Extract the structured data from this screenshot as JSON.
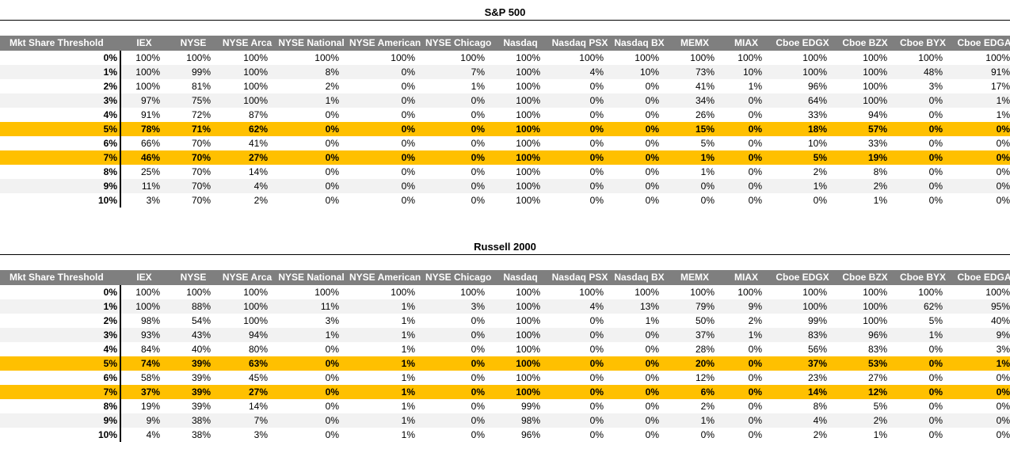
{
  "columns": [
    "Mkt Share Threshold",
    "IEX",
    "NYSE",
    "NYSE Arca",
    "NYSE National",
    "NYSE American",
    "NYSE Chicago",
    "Nasdaq",
    "Nasdaq PSX",
    "Nasdaq BX",
    "MEMX",
    "MIAX",
    "Cboe EDGX",
    "Cboe BZX",
    "Cboe BYX",
    "Cboe EDGA"
  ],
  "highlight_color": "#ffc000",
  "header_color": "#7f7f7f",
  "sections": [
    {
      "title": "S&P 500",
      "rows": [
        {
          "threshold": "0%",
          "values": [
            "100%",
            "100%",
            "100%",
            "100%",
            "100%",
            "100%",
            "100%",
            "100%",
            "100%",
            "100%",
            "100%",
            "100%",
            "100%",
            "100%",
            "100%"
          ]
        },
        {
          "threshold": "1%",
          "values": [
            "100%",
            "99%",
            "100%",
            "8%",
            "0%",
            "7%",
            "100%",
            "4%",
            "10%",
            "73%",
            "10%",
            "100%",
            "100%",
            "48%",
            "91%"
          ]
        },
        {
          "threshold": "2%",
          "values": [
            "100%",
            "81%",
            "100%",
            "2%",
            "0%",
            "1%",
            "100%",
            "0%",
            "0%",
            "41%",
            "1%",
            "96%",
            "100%",
            "3%",
            "17%"
          ]
        },
        {
          "threshold": "3%",
          "values": [
            "97%",
            "75%",
            "100%",
            "1%",
            "0%",
            "0%",
            "100%",
            "0%",
            "0%",
            "34%",
            "0%",
            "64%",
            "100%",
            "0%",
            "1%"
          ]
        },
        {
          "threshold": "4%",
          "values": [
            "91%",
            "72%",
            "87%",
            "0%",
            "0%",
            "0%",
            "100%",
            "0%",
            "0%",
            "26%",
            "0%",
            "33%",
            "94%",
            "0%",
            "1%"
          ]
        },
        {
          "threshold": "5%",
          "values": [
            "78%",
            "71%",
            "62%",
            "0%",
            "0%",
            "0%",
            "100%",
            "0%",
            "0%",
            "15%",
            "0%",
            "18%",
            "57%",
            "0%",
            "0%"
          ]
        },
        {
          "threshold": "6%",
          "values": [
            "66%",
            "70%",
            "41%",
            "0%",
            "0%",
            "0%",
            "100%",
            "0%",
            "0%",
            "5%",
            "0%",
            "10%",
            "33%",
            "0%",
            "0%"
          ]
        },
        {
          "threshold": "7%",
          "values": [
            "46%",
            "70%",
            "27%",
            "0%",
            "0%",
            "0%",
            "100%",
            "0%",
            "0%",
            "1%",
            "0%",
            "5%",
            "19%",
            "0%",
            "0%"
          ]
        },
        {
          "threshold": "8%",
          "values": [
            "25%",
            "70%",
            "14%",
            "0%",
            "0%",
            "0%",
            "100%",
            "0%",
            "0%",
            "1%",
            "0%",
            "2%",
            "8%",
            "0%",
            "0%"
          ]
        },
        {
          "threshold": "9%",
          "values": [
            "11%",
            "70%",
            "4%",
            "0%",
            "0%",
            "0%",
            "100%",
            "0%",
            "0%",
            "0%",
            "0%",
            "1%",
            "2%",
            "0%",
            "0%"
          ]
        },
        {
          "threshold": "10%",
          "values": [
            "3%",
            "70%",
            "2%",
            "0%",
            "0%",
            "0%",
            "100%",
            "0%",
            "0%",
            "0%",
            "0%",
            "0%",
            "1%",
            "0%",
            "0%"
          ]
        }
      ]
    },
    {
      "title": "Russell 2000",
      "rows": [
        {
          "threshold": "0%",
          "values": [
            "100%",
            "100%",
            "100%",
            "100%",
            "100%",
            "100%",
            "100%",
            "100%",
            "100%",
            "100%",
            "100%",
            "100%",
            "100%",
            "100%",
            "100%"
          ]
        },
        {
          "threshold": "1%",
          "values": [
            "100%",
            "88%",
            "100%",
            "11%",
            "1%",
            "3%",
            "100%",
            "4%",
            "13%",
            "79%",
            "9%",
            "100%",
            "100%",
            "62%",
            "95%"
          ]
        },
        {
          "threshold": "2%",
          "values": [
            "98%",
            "54%",
            "100%",
            "3%",
            "1%",
            "0%",
            "100%",
            "0%",
            "1%",
            "50%",
            "2%",
            "99%",
            "100%",
            "5%",
            "40%"
          ]
        },
        {
          "threshold": "3%",
          "values": [
            "93%",
            "43%",
            "94%",
            "1%",
            "1%",
            "0%",
            "100%",
            "0%",
            "0%",
            "37%",
            "1%",
            "83%",
            "96%",
            "1%",
            "9%"
          ]
        },
        {
          "threshold": "4%",
          "values": [
            "84%",
            "40%",
            "80%",
            "0%",
            "1%",
            "0%",
            "100%",
            "0%",
            "0%",
            "28%",
            "0%",
            "56%",
            "83%",
            "0%",
            "3%"
          ]
        },
        {
          "threshold": "5%",
          "values": [
            "74%",
            "39%",
            "63%",
            "0%",
            "1%",
            "0%",
            "100%",
            "0%",
            "0%",
            "20%",
            "0%",
            "37%",
            "53%",
            "0%",
            "1%"
          ]
        },
        {
          "threshold": "6%",
          "values": [
            "58%",
            "39%",
            "45%",
            "0%",
            "1%",
            "0%",
            "100%",
            "0%",
            "0%",
            "12%",
            "0%",
            "23%",
            "27%",
            "0%",
            "0%"
          ]
        },
        {
          "threshold": "7%",
          "values": [
            "37%",
            "39%",
            "27%",
            "0%",
            "1%",
            "0%",
            "100%",
            "0%",
            "0%",
            "6%",
            "0%",
            "14%",
            "12%",
            "0%",
            "0%"
          ]
        },
        {
          "threshold": "8%",
          "values": [
            "19%",
            "39%",
            "14%",
            "0%",
            "1%",
            "0%",
            "99%",
            "0%",
            "0%",
            "2%",
            "0%",
            "8%",
            "5%",
            "0%",
            "0%"
          ]
        },
        {
          "threshold": "9%",
          "values": [
            "9%",
            "38%",
            "7%",
            "0%",
            "1%",
            "0%",
            "98%",
            "0%",
            "0%",
            "1%",
            "0%",
            "4%",
            "2%",
            "0%",
            "0%"
          ]
        },
        {
          "threshold": "10%",
          "values": [
            "4%",
            "38%",
            "3%",
            "0%",
            "1%",
            "0%",
            "96%",
            "0%",
            "0%",
            "0%",
            "0%",
            "2%",
            "1%",
            "0%",
            "0%"
          ]
        }
      ]
    }
  ],
  "highlighted_thresholds": [
    "5%",
    "7%"
  ]
}
